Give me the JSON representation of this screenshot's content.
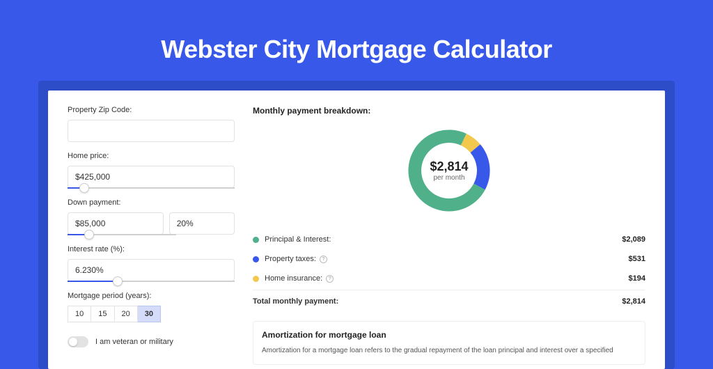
{
  "page_title": "Webster City Mortgage Calculator",
  "colors": {
    "page_bg": "#3858e9",
    "shadow_bg": "#2d4cc8",
    "panel_bg": "#ffffff",
    "principal": "#4fb08a",
    "taxes": "#3858e9",
    "insurance": "#f2c94c"
  },
  "form": {
    "zip_label": "Property Zip Code:",
    "zip_value": "",
    "home_price_label": "Home price:",
    "home_price_value": "$425,000",
    "home_price_slider_pct": 10,
    "down_payment_label": "Down payment:",
    "down_payment_value": "$85,000",
    "down_payment_pct": "20%",
    "down_payment_slider_pct": 20,
    "interest_label": "Interest rate (%):",
    "interest_value": "6.230%",
    "interest_slider_pct": 30,
    "period_label": "Mortgage period (years):",
    "periods": [
      "10",
      "15",
      "20",
      "30"
    ],
    "period_selected": "30",
    "veteran_label": "I am veteran or military",
    "veteran_on": false
  },
  "breakdown": {
    "title": "Monthly payment breakdown:",
    "center_amount": "$2,814",
    "center_sub": "per month",
    "donut": {
      "principal_pct": 74.2,
      "taxes_pct": 18.9,
      "insurance_pct": 6.9
    },
    "rows": [
      {
        "key": "principal",
        "label": "Principal & Interest:",
        "value": "$2,089",
        "info": false
      },
      {
        "key": "taxes",
        "label": "Property taxes:",
        "value": "$531",
        "info": true
      },
      {
        "key": "insurance",
        "label": "Home insurance:",
        "value": "$194",
        "info": true
      }
    ],
    "total_label": "Total monthly payment:",
    "total_value": "$2,814"
  },
  "amortization": {
    "title": "Amortization for mortgage loan",
    "text": "Amortization for a mortgage loan refers to the gradual repayment of the loan principal and interest over a specified"
  }
}
